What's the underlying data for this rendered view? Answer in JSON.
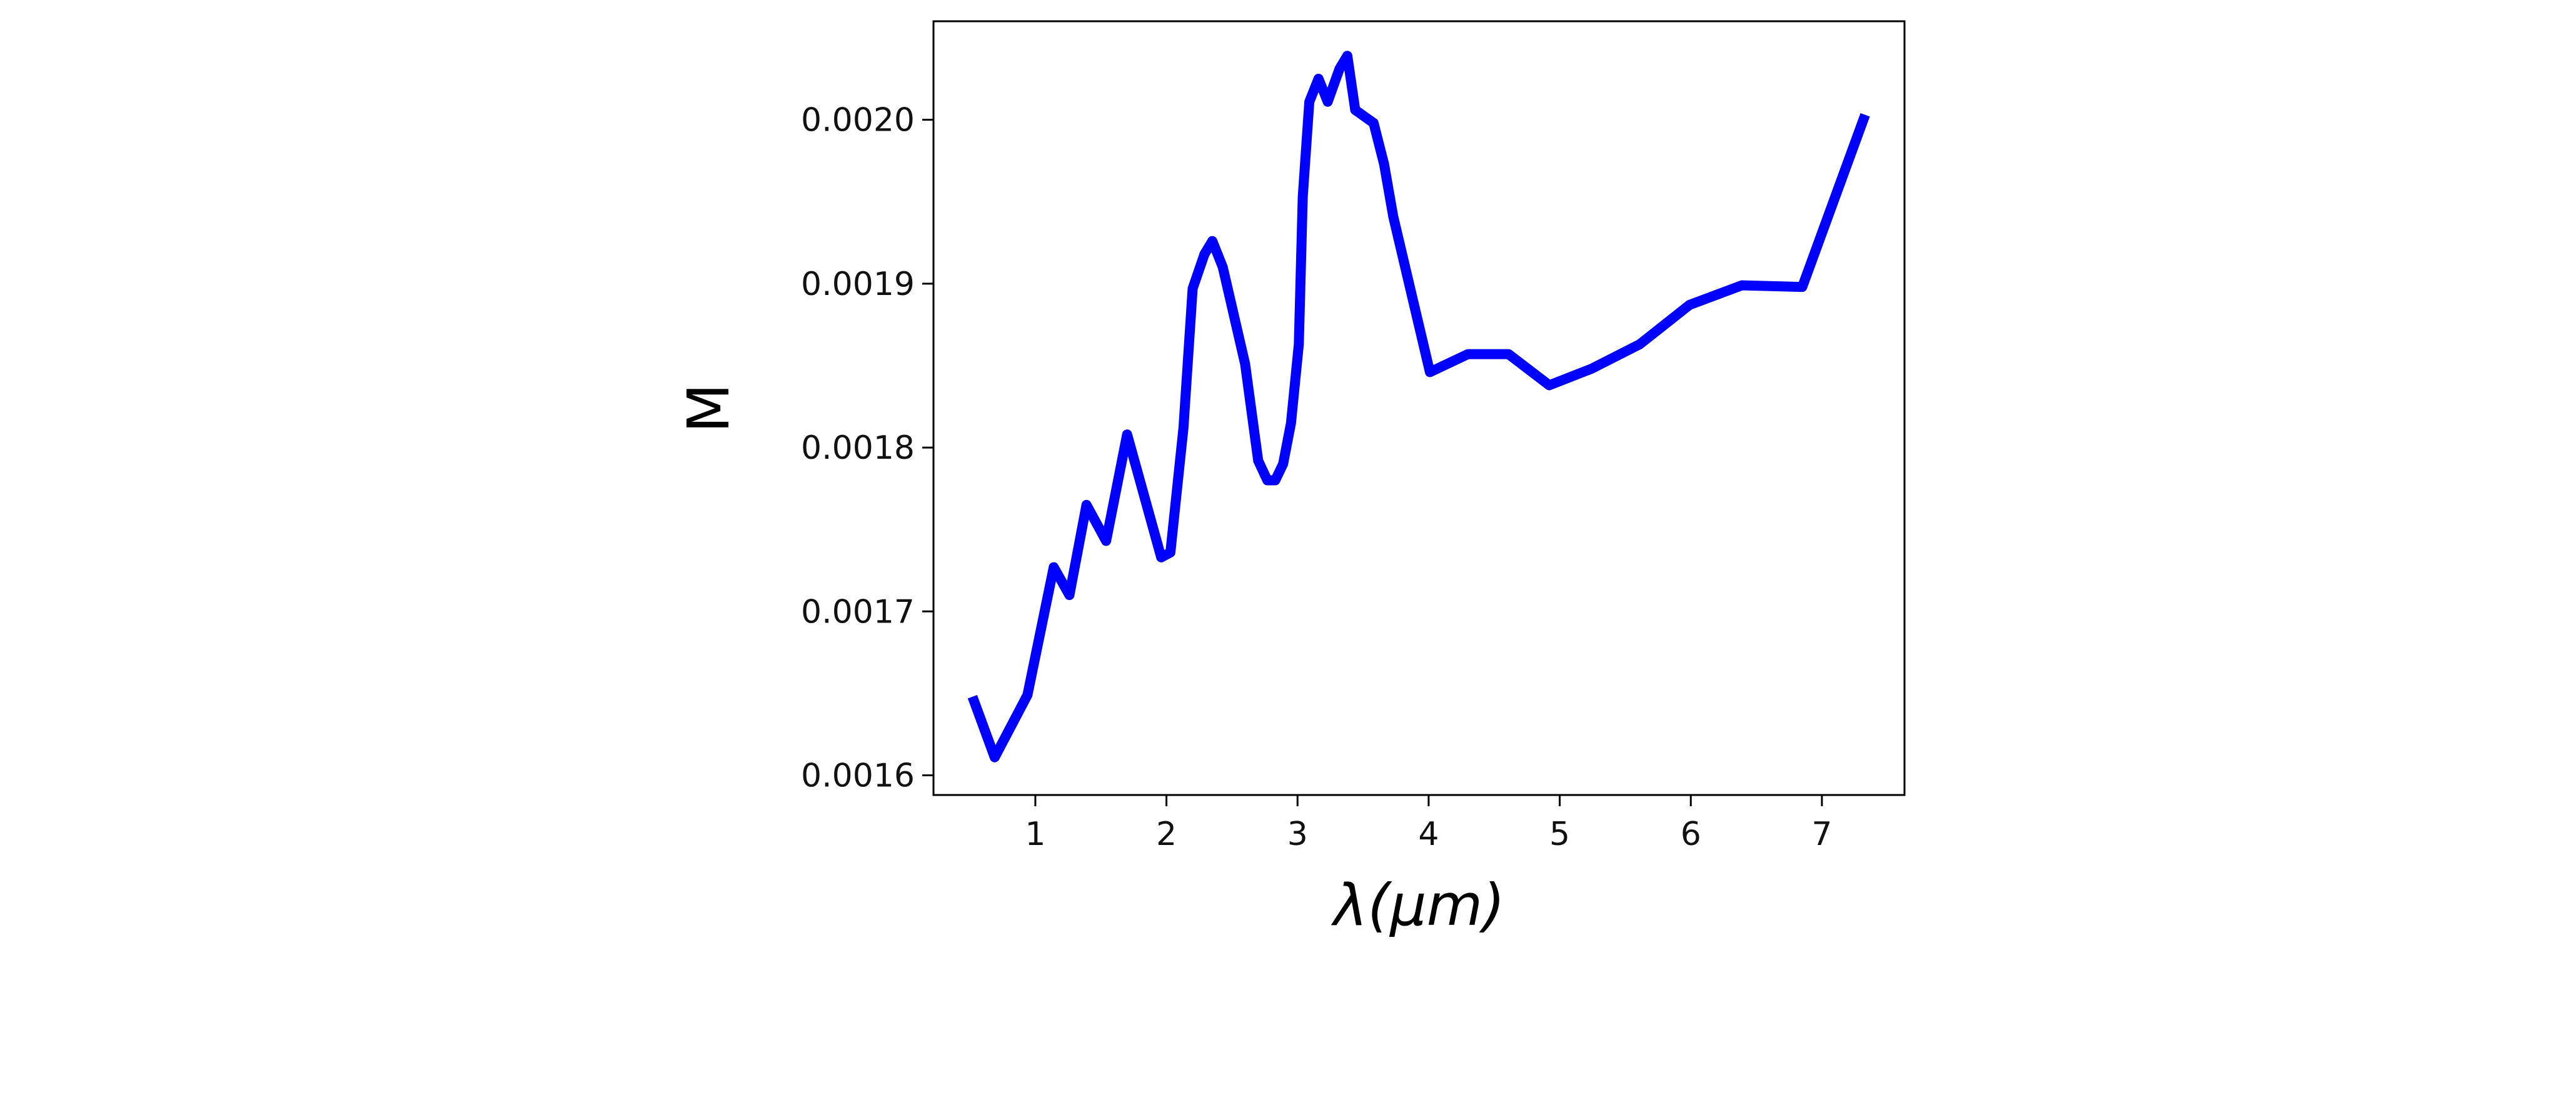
{
  "chart_data": {
    "type": "line",
    "x_label": "λ(μm)",
    "y_label": "M",
    "x": [
      0.52,
      0.69,
      0.94,
      1.14,
      1.26,
      1.39,
      1.54,
      1.7,
      1.96,
      2.03,
      2.13,
      2.2,
      2.29,
      2.35,
      2.43,
      2.6,
      2.7,
      2.77,
      2.83,
      2.89,
      2.95,
      3.01,
      3.04,
      3.09,
      3.16,
      3.23,
      3.32,
      3.38,
      3.44,
      3.58,
      3.66,
      3.73,
      4.01,
      4.3,
      4.61,
      4.92,
      5.24,
      5.61,
      5.99,
      6.39,
      6.85,
      7.33
    ],
    "series": [
      {
        "color": "#0000ff",
        "values": [
          0.001648,
          0.001611,
          0.001649,
          0.001727,
          0.00171,
          0.001765,
          0.001743,
          0.001808,
          0.001733,
          0.001736,
          0.001812,
          0.001897,
          0.001918,
          0.001926,
          0.00191,
          0.001851,
          0.001792,
          0.00178,
          0.00178,
          0.00179,
          0.001815,
          0.001863,
          0.001953,
          0.002011,
          0.002025,
          0.002011,
          0.002031,
          0.002039,
          0.002006,
          0.001998,
          0.001973,
          0.001941,
          0.001846,
          0.001857,
          0.001857,
          0.001838,
          0.001848,
          0.001863,
          0.001887,
          0.001899,
          0.001898,
          0.002003
        ]
      }
    ],
    "xlim": [
      0.223,
      7.63
    ],
    "ylim": [
      0.001588,
      0.0020601
    ],
    "xticks": [
      1,
      2,
      3,
      4,
      5,
      6,
      7
    ],
    "yticks": [
      {
        "value": 0.0016,
        "label": "0.0016"
      },
      {
        "value": 0.0017,
        "label": "0.0017"
      },
      {
        "value": 0.0018,
        "label": "0.0018"
      },
      {
        "value": 0.0019,
        "label": "0.0019"
      },
      {
        "value": 0.002,
        "label": "0.0020"
      }
    ],
    "grid": false
  }
}
